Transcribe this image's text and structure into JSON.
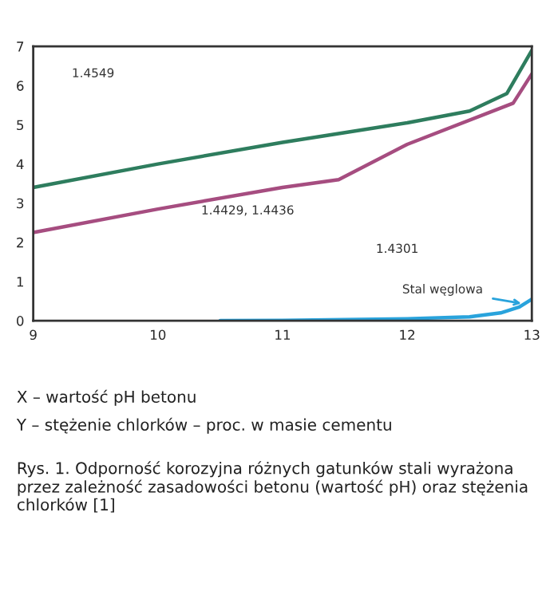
{
  "chart_data": {
    "type": "line",
    "xlim": [
      9,
      13
    ],
    "ylim": [
      0,
      7
    ],
    "xticks": [
      9,
      10,
      11,
      12,
      13
    ],
    "yticks": [
      0,
      1,
      2,
      3,
      4,
      5,
      6,
      7
    ],
    "grid": false,
    "legend": false,
    "marker": "none",
    "line_style": "solid",
    "series": [
      {
        "color": "#2e7d5e",
        "x": [
          9,
          10,
          11,
          11.5,
          12,
          12.5,
          12.8,
          13
        ],
        "values": [
          3.4,
          4.0,
          4.55,
          4.8,
          5.05,
          5.35,
          5.8,
          6.9
        ]
      },
      {
        "color": "#a64d80",
        "x": [
          9,
          10,
          11,
          11.45,
          12,
          12.85,
          13
        ],
        "values": [
          2.25,
          2.85,
          3.4,
          3.6,
          4.5,
          5.55,
          6.3
        ]
      },
      {
        "color": "#29a3dc",
        "x": [
          10.5,
          11,
          12,
          12.5,
          12.75,
          12.9,
          13
        ],
        "values": [
          0,
          0.01,
          0.05,
          0.1,
          0.2,
          0.35,
          0.55
        ]
      }
    ],
    "annotations": [
      "1.4549",
      "1.4429, 1.4436",
      "1.4301",
      {
        "text": "Stal węglowa",
        "x": 12.95,
        "y": 0.42
      },
      "X – wartość pH betonu",
      "Y – stężenie chlorków – proc. w masie cementu",
      "Rys. 1. Odporność korozyjna różnych gatunków stali wyrażona przez zależność zasadowości betonu (wartość pH) oraz stężenia chlorków [1]"
    ]
  }
}
